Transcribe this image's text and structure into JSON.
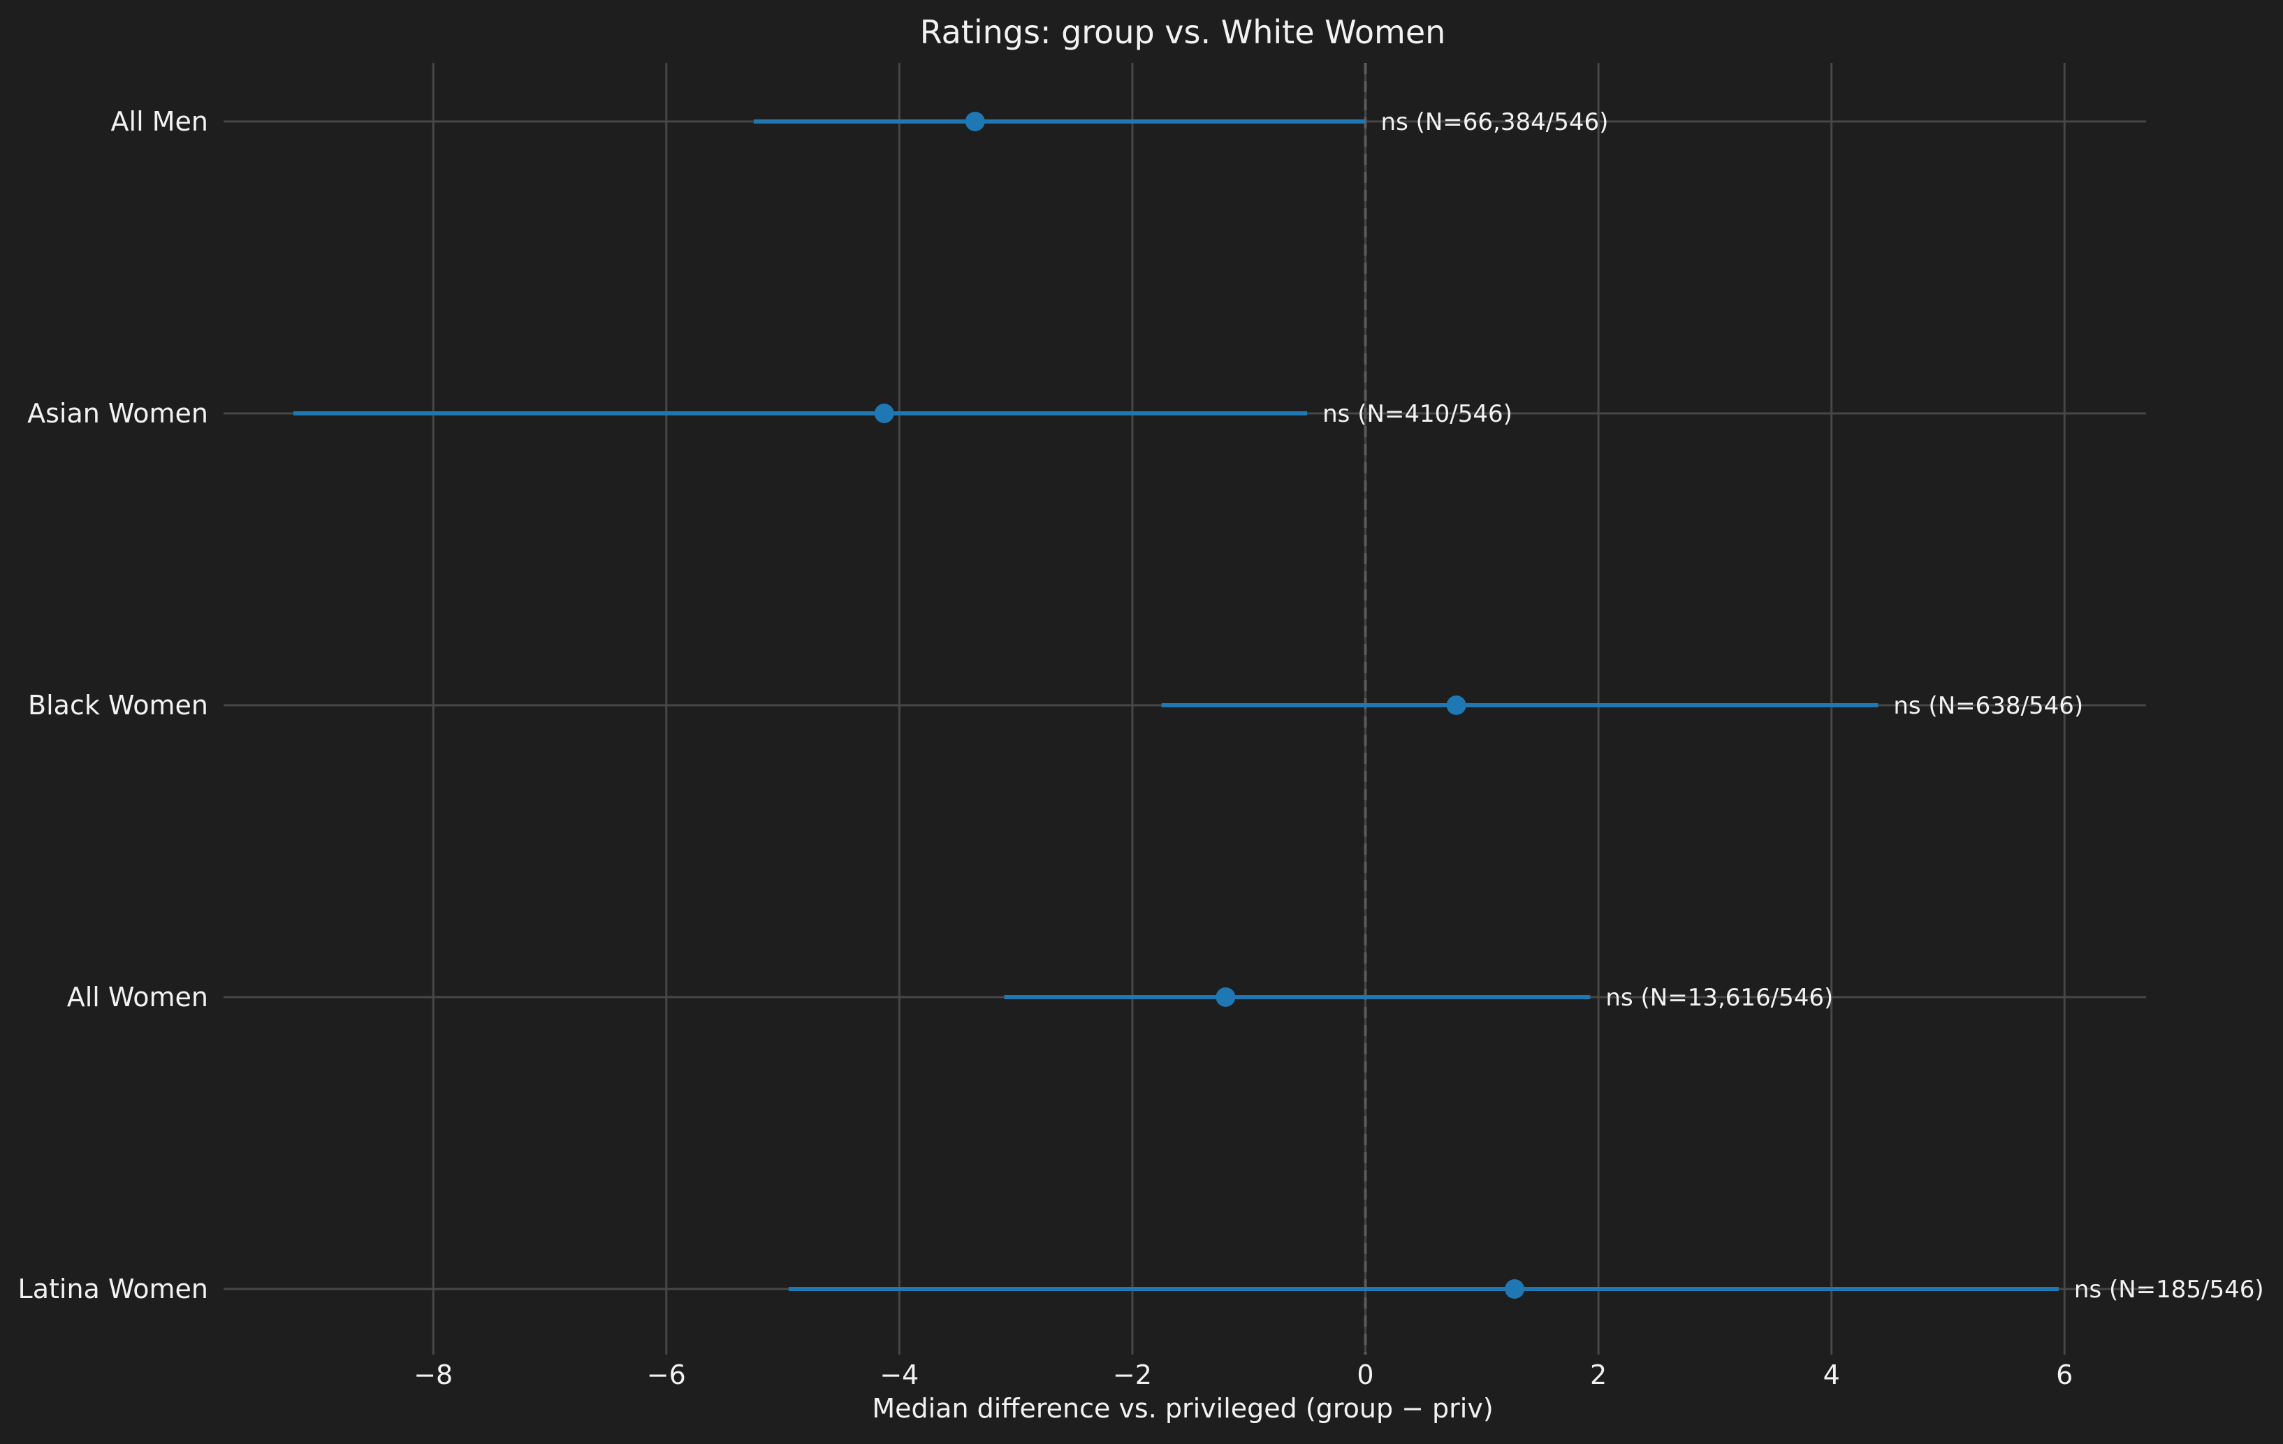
{
  "chart_data": {
    "type": "scatter",
    "title": "Ratings: group vs. White Women",
    "xlabel": "Median difference vs. privileged (group − priv)",
    "ylabel": "",
    "xlim": [
      -9.8,
      6.7
    ],
    "xticks": [
      -8,
      -6,
      -4,
      -2,
      0,
      2,
      4,
      6
    ],
    "xtick_labels": [
      "−8",
      "−6",
      "−4",
      "−2",
      "0",
      "2",
      "4",
      "6"
    ],
    "reference_line_x": 0,
    "grid": true,
    "colors": {
      "background": "#1e1e1e",
      "grid": "#474747",
      "series": "#1f77b4",
      "text": "#f2f2f2",
      "reference": "#5a5a5a"
    },
    "groups": [
      {
        "label": "All Men",
        "estimate": -3.35,
        "ci_low": -5.25,
        "ci_high": 0.0,
        "annotation": "ns  (N=66,384/546)"
      },
      {
        "label": "Asian Women",
        "estimate": -4.13,
        "ci_low": -9.2,
        "ci_high": -0.5,
        "annotation": "ns  (N=410/546)"
      },
      {
        "label": "Black Women",
        "estimate": 0.78,
        "ci_low": -1.75,
        "ci_high": 4.4,
        "annotation": "ns  (N=638/546)"
      },
      {
        "label": "All Women",
        "estimate": -1.2,
        "ci_low": -3.1,
        "ci_high": 1.93,
        "annotation": "ns  (N=13,616/546)"
      },
      {
        "label": "Latina Women",
        "estimate": 1.28,
        "ci_low": -4.95,
        "ci_high": 5.95,
        "annotation": "ns  (N=185/546)"
      }
    ]
  }
}
